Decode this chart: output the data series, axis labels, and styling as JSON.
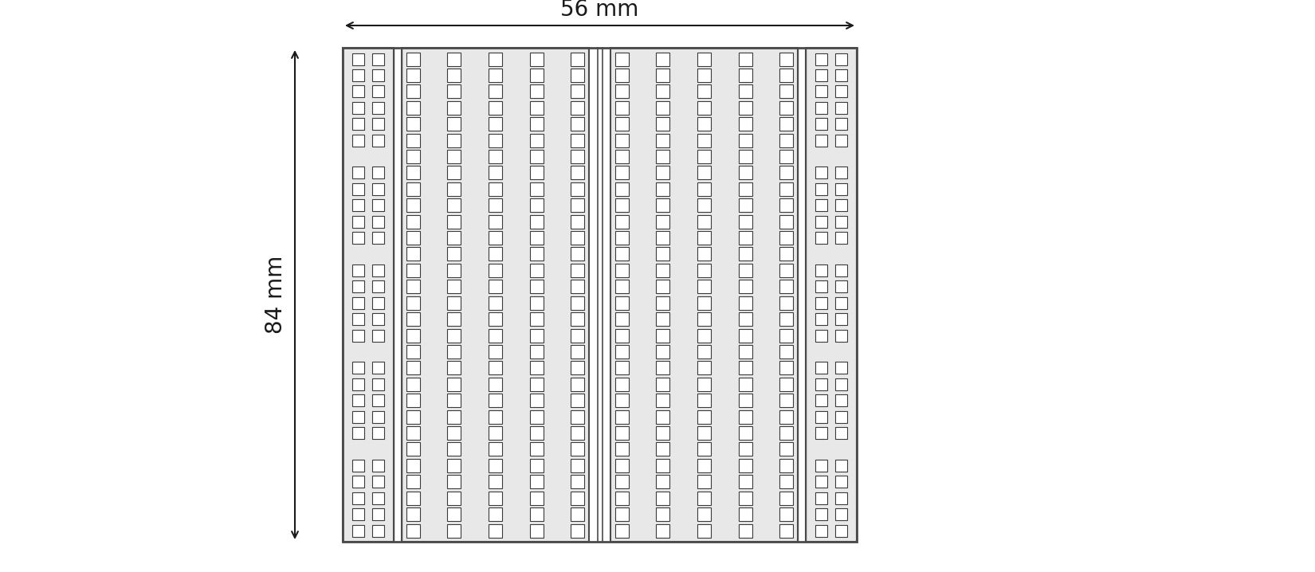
{
  "width_mm": "56 mm",
  "height_mm": "84 mm",
  "bg_color": "#ffffff",
  "board_color": "#e8e8e8",
  "board_border_color": "#4a4a4a",
  "hole_color": "#ffffff",
  "hole_border_color": "#3a3a3a",
  "arrow_color": "#1a1a1a",
  "text_color": "#1a1a1a",
  "fig_width": 16.5,
  "fig_height": 7.18,
  "n_rows": 30,
  "power_rail_cols": 2,
  "main_section_cols": 5,
  "power_group_size": 6,
  "power_num_groups": 5,
  "annotation_fontsize": 20
}
